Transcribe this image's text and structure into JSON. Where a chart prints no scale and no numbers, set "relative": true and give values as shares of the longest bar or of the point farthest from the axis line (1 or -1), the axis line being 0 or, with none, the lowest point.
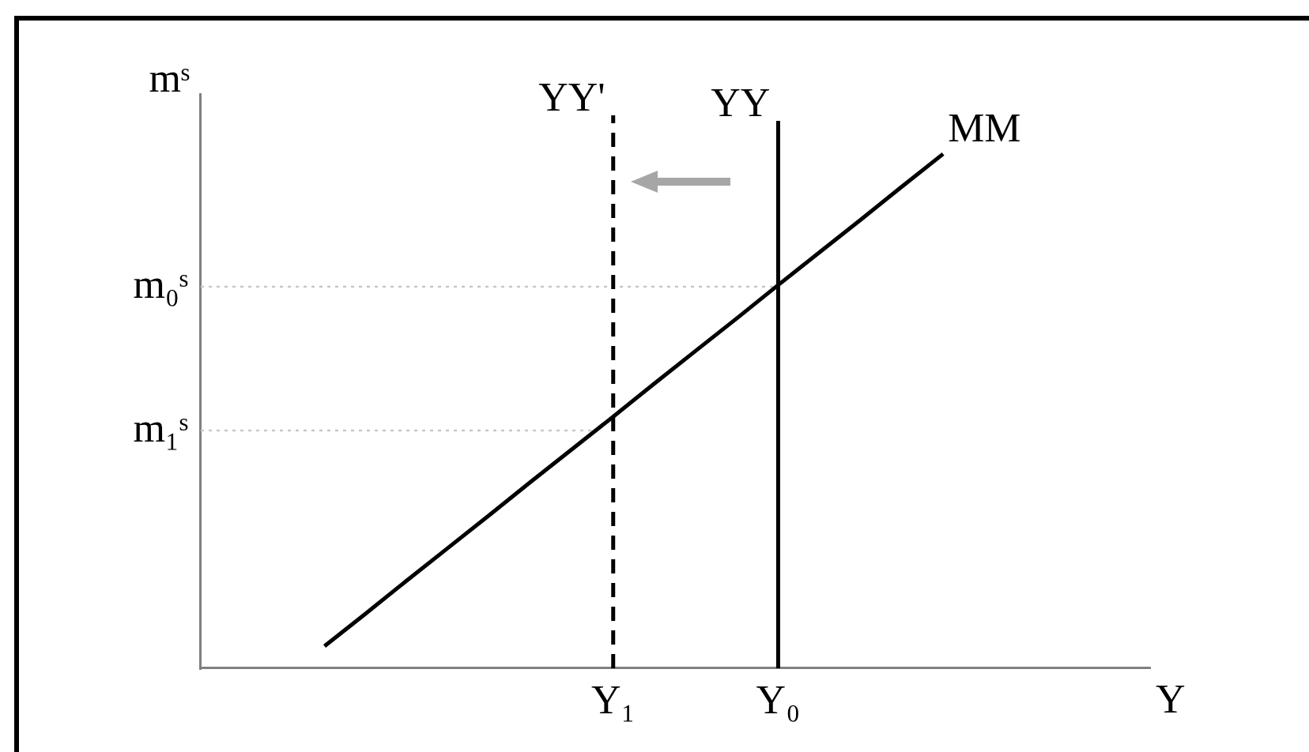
{
  "chart_data": {
    "type": "line",
    "xlabel": "Y",
    "ylabel": "mˢ",
    "relative": true,
    "categories": [
      null,
      null,
      null,
      null,
      null,
      null,
      null,
      null,
      null,
      null,
      "Y₁",
      null,
      null,
      null,
      "Y₀",
      null,
      null,
      null,
      null,
      null,
      null,
      null,
      null,
      null
    ],
    "series": [
      {
        "name": "MM",
        "color": "#000000",
        "values": [
          null,
          null,
          null,
          0.04,
          0.099,
          0.159,
          0.218,
          0.277,
          0.337,
          0.396,
          0.455,
          0.515,
          0.574,
          0.633,
          0.693,
          0.752,
          0.811,
          0.871,
          0.93,
          null,
          null,
          null,
          null,
          null
        ]
      },
      {
        "name": "YY'",
        "color": "#000000",
        "x": [
          "Y₁",
          "Y₁"
        ],
        "values": [
          0,
          1
        ],
        "line_style": "dashed"
      },
      {
        "name": "YY",
        "color": "#000000",
        "x": [
          "Y₀",
          "Y₀"
        ],
        "values": [
          0,
          0.99
        ]
      }
    ],
    "ref_lines": [
      {
        "axis": "y",
        "value": 0.69,
        "label": "m₀ˢ",
        "color": "#c8c8c8",
        "line_style": "dotted"
      },
      {
        "axis": "y",
        "value": 0.43,
        "label": "m₁ˢ",
        "color": "#c8c8c8",
        "line_style": "dotted"
      }
    ],
    "grid": false,
    "legend": false,
    "marker": "none",
    "line_style": "solid"
  }
}
